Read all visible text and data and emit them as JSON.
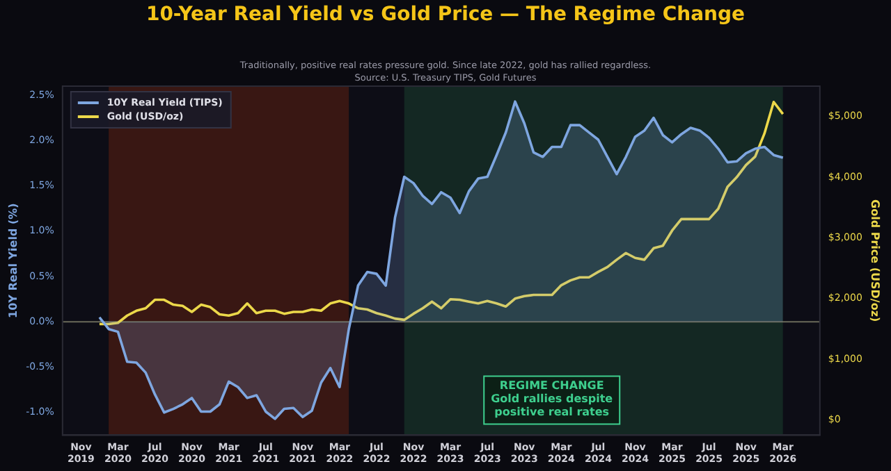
{
  "chart_data": {
    "type": "line",
    "title": "10-Year Real Yield vs Gold Price — The Regime Change",
    "subtitle": "Traditionally, positive real rates pressure gold. Since late 2022, gold has rallied regardless.",
    "annotations": [
      "Source: U.S. Treasury TIPS, Gold Futures",
      "REGIME CHANGE\nGold rallies despite\npositive real rates"
    ],
    "ylabel": "10Y Real Yield (%)",
    "y2label": "Gold Price (USD/oz)",
    "x": [
      "2020-01",
      "2020-02",
      "2020-03",
      "2020-04",
      "2020-05",
      "2020-06",
      "2020-07",
      "2020-08",
      "2020-09",
      "2020-10",
      "2020-11",
      "2020-12",
      "2021-01",
      "2021-02",
      "2021-03",
      "2021-04",
      "2021-05",
      "2021-06",
      "2021-07",
      "2021-08",
      "2021-09",
      "2021-10",
      "2021-11",
      "2021-12",
      "2022-01",
      "2022-02",
      "2022-03",
      "2022-04",
      "2022-05",
      "2022-06",
      "2022-07",
      "2022-08",
      "2022-09",
      "2022-10",
      "2022-11",
      "2022-12",
      "2023-01",
      "2023-02",
      "2023-03",
      "2023-04",
      "2023-05",
      "2023-06",
      "2023-07",
      "2023-08",
      "2023-09",
      "2023-10",
      "2023-11",
      "2023-12",
      "2024-01",
      "2024-02",
      "2024-03",
      "2024-04",
      "2024-05",
      "2024-06",
      "2024-07",
      "2024-08",
      "2024-09",
      "2024-10",
      "2024-11",
      "2024-12",
      "2025-01",
      "2025-02",
      "2025-03",
      "2025-04",
      "2025-05",
      "2025-06",
      "2025-07",
      "2025-08",
      "2025-09",
      "2025-10",
      "2025-11",
      "2025-12",
      "2026-01",
      "2026-02",
      "2026-03"
    ],
    "series": [
      {
        "name": "10Y Real Yield (TIPS)",
        "type": "area",
        "color": "#7ea6e0",
        "values": [
          0.05,
          -0.08,
          -0.11,
          -0.44,
          -0.45,
          -0.56,
          -0.8,
          -1.0,
          -0.96,
          -0.91,
          -0.84,
          -0.99,
          -0.99,
          -0.91,
          -0.66,
          -0.72,
          -0.84,
          -0.81,
          -0.99,
          -1.07,
          -0.96,
          -0.95,
          -1.05,
          -0.98,
          -0.67,
          -0.51,
          -0.72,
          -0.08,
          0.4,
          0.55,
          0.53,
          0.4,
          1.15,
          1.6,
          1.53,
          1.39,
          1.3,
          1.43,
          1.37,
          1.2,
          1.44,
          1.58,
          1.6,
          1.84,
          2.09,
          2.43,
          2.19,
          1.87,
          1.82,
          1.93,
          1.93,
          2.17,
          2.17,
          2.09,
          2.01,
          1.82,
          1.63,
          1.82,
          2.04,
          2.11,
          2.25,
          2.06,
          1.98,
          2.07,
          2.14,
          2.11,
          2.03,
          1.91,
          1.76,
          1.77,
          1.86,
          1.91,
          1.93,
          1.84,
          1.81
        ]
      },
      {
        "name": "Gold (USD/oz)",
        "type": "line",
        "axis": "y2",
        "color": "#ecd84a",
        "values": [
          1580,
          1580,
          1600,
          1720,
          1800,
          1840,
          1980,
          1980,
          1900,
          1880,
          1780,
          1900,
          1860,
          1740,
          1720,
          1760,
          1920,
          1760,
          1800,
          1800,
          1750,
          1780,
          1780,
          1820,
          1800,
          1920,
          1960,
          1920,
          1840,
          1820,
          1760,
          1720,
          1670,
          1650,
          1750,
          1840,
          1950,
          1840,
          1990,
          1980,
          1950,
          1920,
          1960,
          1920,
          1870,
          2000,
          2040,
          2060,
          2060,
          2060,
          2220,
          2300,
          2350,
          2350,
          2440,
          2520,
          2640,
          2750,
          2670,
          2640,
          2830,
          2870,
          3120,
          3310,
          3310,
          3310,
          3310,
          3480,
          3840,
          4000,
          4200,
          4340,
          4720,
          5240,
          5040
        ]
      }
    ],
    "xlim": [
      "2019-09",
      "2026-07"
    ],
    "xticks": [
      {
        "value": "2019-11",
        "label": "Nov 2019"
      },
      {
        "value": "2020-03",
        "label": "Mar 2020"
      },
      {
        "value": "2020-07",
        "label": "Jul 2020"
      },
      {
        "value": "2020-11",
        "label": "Nov 2020"
      },
      {
        "value": "2021-03",
        "label": "Mar 2021"
      },
      {
        "value": "2021-07",
        "label": "Jul 2021"
      },
      {
        "value": "2021-11",
        "label": "Nov 2021"
      },
      {
        "value": "2022-03",
        "label": "Mar 2022"
      },
      {
        "value": "2022-07",
        "label": "Jul 2022"
      },
      {
        "value": "2022-11",
        "label": "Nov 2022"
      },
      {
        "value": "2023-03",
        "label": "Mar 2023"
      },
      {
        "value": "2023-07",
        "label": "Jul 2023"
      },
      {
        "value": "2023-11",
        "label": "Nov 2023"
      },
      {
        "value": "2024-03",
        "label": "Mar 2024"
      },
      {
        "value": "2024-07",
        "label": "Jul 2024"
      },
      {
        "value": "2024-11",
        "label": "Nov 2024"
      },
      {
        "value": "2025-03",
        "label": "Mar 2025"
      },
      {
        "value": "2025-07",
        "label": "Jul 2025"
      },
      {
        "value": "2025-11",
        "label": "Nov 2025"
      },
      {
        "value": "2026-03",
        "label": "Mar 2026"
      }
    ],
    "ylim": [
      -1.25,
      2.6
    ],
    "yticks": [
      {
        "value": -1,
        "label": "-1.0%"
      },
      {
        "value": -0.5,
        "label": "-0.5%"
      },
      {
        "value": 0,
        "label": "0.0%"
      },
      {
        "value": 0.5,
        "label": "0.5%"
      },
      {
        "value": 1,
        "label": "1.0%"
      },
      {
        "value": 1.5,
        "label": "1.5%"
      },
      {
        "value": 2,
        "label": "2.0%"
      },
      {
        "value": 2.5,
        "label": "2.5%"
      }
    ],
    "y2lim": [
      -250,
      5500
    ],
    "y2ticks": [
      {
        "value": 0,
        "label": "$0"
      },
      {
        "value": 1000,
        "label": "$1,000"
      },
      {
        "value": 2000,
        "label": "$2,000"
      },
      {
        "value": 3000,
        "label": "$3,000"
      },
      {
        "value": 4000,
        "label": "$4,000"
      },
      {
        "value": 5000,
        "label": "$5,000"
      }
    ],
    "ref_lines": [
      {
        "axis": "y",
        "value": 0,
        "color": "#6a6a5a"
      }
    ],
    "bands": [
      {
        "axis": "x",
        "from": "2020-02",
        "to": "2022-04",
        "color": "#6e2410"
      },
      {
        "axis": "x",
        "from": "2022-10",
        "to": "2026-03",
        "color": "#1c4a34"
      }
    ],
    "grid": false,
    "legend": "top left",
    "marker": "none",
    "line_style": "solid"
  }
}
